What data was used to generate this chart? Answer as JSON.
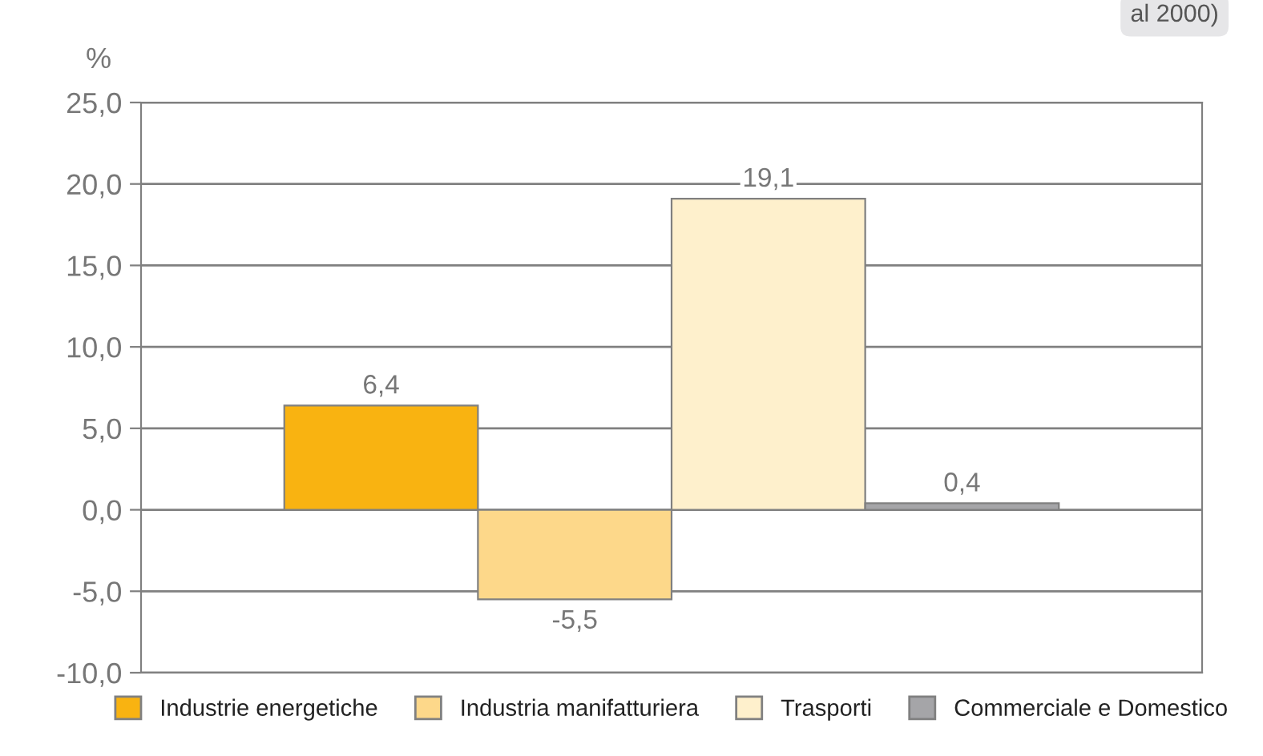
{
  "chart_data": {
    "type": "bar",
    "ylabel": "%",
    "categories": [
      null
    ],
    "series": [
      {
        "name": "Industrie energetiche",
        "color": "#f9b311",
        "values": [
          6.4
        ],
        "value_labels": [
          "6,4"
        ]
      },
      {
        "name": "Industria manifatturiera",
        "color": "#fdd88a",
        "values": [
          -5.5
        ],
        "value_labels": [
          "-5,5"
        ]
      },
      {
        "name": "Trasporti",
        "color": "#fef0cc",
        "values": [
          19.1
        ],
        "value_labels": [
          "19,1"
        ]
      },
      {
        "name": "Commerciale e Domestico",
        "color": "#a5a5a8",
        "values": [
          0.4
        ],
        "value_labels": [
          "0,4"
        ]
      }
    ],
    "ylim": [
      -10,
      25
    ],
    "yticks": [
      {
        "value": -10,
        "label": "-10,0"
      },
      {
        "value": -5,
        "label": "-5,0"
      },
      {
        "value": 0,
        "label": "0,0"
      },
      {
        "value": 5,
        "label": "5,0"
      },
      {
        "value": 10,
        "label": "10,0"
      },
      {
        "value": 15,
        "label": "15,0"
      },
      {
        "value": 20,
        "label": "20,0"
      },
      {
        "value": 25,
        "label": "25,0"
      }
    ],
    "grid": "y",
    "legend": "bottom",
    "annotations": [
      "al 2000)"
    ]
  }
}
